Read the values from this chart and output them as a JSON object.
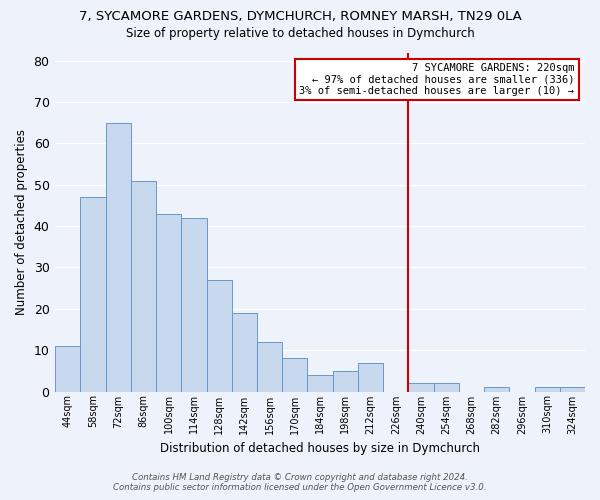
{
  "title1": "7, SYCAMORE GARDENS, DYMCHURCH, ROMNEY MARSH, TN29 0LA",
  "title2": "Size of property relative to detached houses in Dymchurch",
  "xlabel": "Distribution of detached houses by size in Dymchurch",
  "ylabel": "Number of detached properties",
  "bar_color": "#c8d9ee",
  "bar_edge_color": "#6699cc",
  "background_color": "#eef2fa",
  "grid_color": "#ffffff",
  "categories": [
    "44sqm",
    "58sqm",
    "72sqm",
    "86sqm",
    "100sqm",
    "114sqm",
    "128sqm",
    "142sqm",
    "156sqm",
    "170sqm",
    "184sqm",
    "198sqm",
    "212sqm",
    "226sqm",
    "240sqm",
    "254sqm",
    "268sqm",
    "282sqm",
    "296sqm",
    "310sqm",
    "324sqm"
  ],
  "values": [
    11,
    47,
    65,
    51,
    43,
    42,
    27,
    19,
    12,
    8,
    4,
    5,
    7,
    0,
    2,
    2,
    0,
    1,
    0,
    1,
    1
  ],
  "ylim": [
    0,
    82
  ],
  "yticks": [
    0,
    10,
    20,
    30,
    40,
    50,
    60,
    70,
    80
  ],
  "vline_x": 13.5,
  "vline_color": "#cc0000",
  "annotation_title": "7 SYCAMORE GARDENS: 220sqm",
  "annotation_line1": "← 97% of detached houses are smaller (336)",
  "annotation_line2": "3% of semi-detached houses are larger (10) →",
  "annotation_box_color": "#ffffff",
  "annotation_box_edge_color": "#cc0000",
  "footer1": "Contains HM Land Registry data © Crown copyright and database right 2024.",
  "footer2": "Contains public sector information licensed under the Open Government Licence v3.0."
}
